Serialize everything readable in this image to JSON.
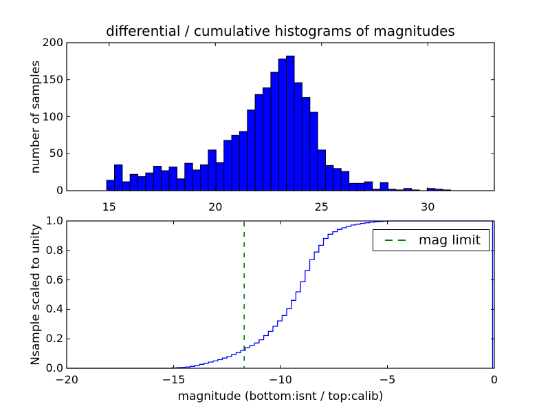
{
  "figure": {
    "background": "#ffffff"
  },
  "colors": {
    "bar_fill": "#0000ff",
    "bar_edge": "#000000",
    "curve": "#0000ff",
    "mag_limit_line": "#008000",
    "axis": "#000000",
    "text": "#000000"
  },
  "legend": {
    "label": "mag limit"
  },
  "chart_data": [
    {
      "type": "bar",
      "title": "differential / cumulative histograms of magnitudes",
      "xlabel": "",
      "ylabel": "number of samples",
      "xlim": [
        13.0,
        33.13
      ],
      "ylim": [
        0,
        200
      ],
      "grid": false,
      "xticks": [
        15,
        20,
        25,
        30
      ],
      "xtick_labels": [
        "15",
        "20",
        "25",
        "30"
      ],
      "yticks": [
        0,
        50,
        100,
        150,
        200
      ],
      "ytick_labels": [
        "0",
        "50",
        "100",
        "150",
        "200"
      ],
      "bin_start": 14.88,
      "bin_width": 0.368,
      "counts": [
        14,
        35,
        12,
        22,
        19,
        24,
        33,
        27,
        32,
        16,
        37,
        28,
        35,
        55,
        38,
        68,
        75,
        80,
        109,
        130,
        139,
        160,
        178,
        182,
        146,
        126,
        106,
        55,
        34,
        30,
        26,
        10,
        10,
        12,
        2,
        11,
        2,
        1,
        3,
        1,
        0,
        3,
        2,
        1
      ]
    },
    {
      "type": "line",
      "subtype": "cumulative-step",
      "title": "",
      "xlabel": "magnitude (bottom:isnt / top:calib)",
      "ylabel": "Nsample scaled to unity",
      "xlim": [
        -20,
        0
      ],
      "ylim": [
        0.0,
        1.0
      ],
      "grid": false,
      "xticks": [
        -20,
        -15,
        -10,
        -5,
        0
      ],
      "xtick_labels": [
        "−20",
        "−15",
        "−10",
        "−5",
        "0"
      ],
      "yticks": [
        0.0,
        0.2,
        0.4,
        0.6,
        0.8,
        1.0
      ],
      "ytick_labels": [
        "0.0",
        "0.2",
        "0.4",
        "0.6",
        "0.8",
        "1.0"
      ],
      "step_width": 0.215,
      "curve_anchors": [
        [
          -20.0,
          0.0
        ],
        [
          -15.3,
          0.0
        ],
        [
          -14.3,
          0.01
        ],
        [
          -13.7,
          0.03
        ],
        [
          -13.0,
          0.055
        ],
        [
          -12.4,
          0.085
        ],
        [
          -11.8,
          0.125
        ],
        [
          -11.65,
          0.14
        ],
        [
          -11.1,
          0.18
        ],
        [
          -10.5,
          0.26
        ],
        [
          -9.8,
          0.38
        ],
        [
          -9.2,
          0.54
        ],
        [
          -8.6,
          0.75
        ],
        [
          -7.9,
          0.9
        ],
        [
          -7.4,
          0.94
        ],
        [
          -6.8,
          0.97
        ],
        [
          -6.2,
          0.985
        ],
        [
          -5.6,
          0.995
        ],
        [
          -5.1,
          1.0
        ],
        [
          -0.08,
          1.0
        ]
      ],
      "curve_end_drop_x": -0.08,
      "mag_limit_x": -11.7,
      "legend_label": "mag limit",
      "legend_position": "upper right"
    }
  ]
}
